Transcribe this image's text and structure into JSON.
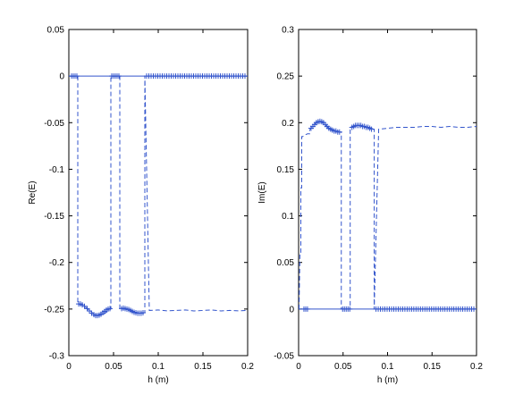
{
  "chart_data": [
    {
      "type": "line",
      "xlabel": "h (m)",
      "ylabel": "Re(E)",
      "xlim": [
        0,
        0.2
      ],
      "ylim": [
        -0.3,
        0.05
      ],
      "xticks": [
        0,
        0.05,
        0.1,
        0.15,
        0.2
      ],
      "xtick_labels": [
        "0",
        "0.05",
        "0.1",
        "0.15",
        "0.2"
      ],
      "yticks": [
        0.05,
        0,
        -0.05,
        -0.1,
        -0.15,
        -0.2,
        -0.25,
        -0.3
      ],
      "ytick_labels": [
        "0.05",
        "0",
        "-0.05",
        "-0.1",
        "-0.15",
        "-0.2",
        "-0.25",
        "-0.3"
      ],
      "grid": false,
      "color": "#3355cc",
      "series": [
        {
          "style": "solid",
          "x": [
            0,
            0.2
          ],
          "y": [
            0,
            0
          ]
        },
        {
          "style": "dashed",
          "x": [
            0.002,
            0.006,
            0.01,
            0.01,
            0.014,
            0.02,
            0.027,
            0.033,
            0.039,
            0.045,
            0.047,
            0.047,
            0.052,
            0.057,
            0.057,
            0.062,
            0.068,
            0.074,
            0.08,
            0.085,
            0.085,
            0.09,
            0.1,
            0.11,
            0.12,
            0.13,
            0.14,
            0.15,
            0.16,
            0.17,
            0.18,
            0.19,
            0.2
          ],
          "y": [
            0,
            0,
            0,
            -0.2445,
            -0.2455,
            -0.249,
            -0.2545,
            -0.257,
            -0.2555,
            -0.2515,
            -0.25,
            0,
            0,
            0,
            -0.25,
            -0.25,
            -0.251,
            -0.2535,
            -0.2545,
            -0.254,
            0,
            -0.2515,
            -0.251,
            -0.252,
            -0.2515,
            -0.251,
            -0.252,
            -0.2515,
            -0.251,
            -0.252,
            -0.2515,
            -0.252,
            -0.2515
          ]
        }
      ],
      "markers": {
        "symbol": "+",
        "on_zero": [
          0.003,
          0.005,
          0.007,
          0.009,
          0.048,
          0.05,
          0.052,
          0.054,
          0.056,
          0.087,
          0.0895,
          0.092,
          0.0945,
          0.097,
          0.0995,
          0.102,
          0.1045,
          0.107,
          0.1095,
          0.112,
          0.1145,
          0.117,
          0.1195,
          0.122,
          0.1245,
          0.127,
          0.1295,
          0.132,
          0.1345,
          0.137,
          0.1395,
          0.142,
          0.1445,
          0.147,
          0.1495,
          0.152,
          0.1545,
          0.157,
          0.1595,
          0.162,
          0.1645,
          0.167,
          0.1695,
          0.172,
          0.1745,
          0.177,
          0.1795,
          0.182,
          0.1845,
          0.187,
          0.1895,
          0.192,
          0.1945,
          0.197
        ],
        "on_curve_x": [
          0.011,
          0.013,
          0.015,
          0.0175,
          0.0205,
          0.023,
          0.0255,
          0.028,
          0.03,
          0.032,
          0.034,
          0.036,
          0.038,
          0.04,
          0.042,
          0.044,
          0.046,
          0.059,
          0.061,
          0.063,
          0.065,
          0.067,
          0.069,
          0.071,
          0.073,
          0.075,
          0.077,
          0.079,
          0.081,
          0.083
        ],
        "on_curve_y": [
          -0.2445,
          -0.2445,
          -0.2455,
          -0.247,
          -0.2495,
          -0.252,
          -0.2545,
          -0.256,
          -0.257,
          -0.257,
          -0.2565,
          -0.2555,
          -0.254,
          -0.2525,
          -0.251,
          -0.25,
          -0.2495,
          -0.2495,
          -0.249,
          -0.2495,
          -0.25,
          -0.2505,
          -0.2515,
          -0.2525,
          -0.2535,
          -0.254,
          -0.2545,
          -0.2545,
          -0.2545,
          -0.254
        ]
      }
    },
    {
      "type": "line",
      "xlabel": "h (m)",
      "ylabel": "Im(E)",
      "xlim": [
        0,
        0.2
      ],
      "ylim": [
        -0.05,
        0.3
      ],
      "xticks": [
        0,
        0.05,
        0.1,
        0.15,
        0.2
      ],
      "xtick_labels": [
        "0",
        "0.05",
        "0.1",
        "0.15",
        "0.2"
      ],
      "yticks": [
        0.3,
        0.25,
        0.2,
        0.15,
        0.1,
        0.05,
        0,
        -0.05
      ],
      "ytick_labels": [
        "0.3",
        "0.25",
        "0.2",
        "0.15",
        "0.1",
        "0.05",
        "0",
        "-0.05"
      ],
      "grid": false,
      "color": "#3355cc",
      "series": [
        {
          "style": "solid",
          "x": [
            0,
            0.2
          ],
          "y": [
            0,
            0
          ]
        },
        {
          "style": "dashed",
          "x": [
            0.0005,
            0.0015,
            0.0025,
            0.0025,
            0.0035,
            0.0035,
            0.0045,
            0.0075,
            0.01,
            0.0125,
            0.0125,
            0.015,
            0.02,
            0.025,
            0.03,
            0.035,
            0.04,
            0.045,
            0.048,
            0.048,
            0.053,
            0.058,
            0.058,
            0.062,
            0.068,
            0.074,
            0.08,
            0.085,
            0.085,
            0.09,
            0.1,
            0.11,
            0.12,
            0.13,
            0.14,
            0.15,
            0.16,
            0.17,
            0.18,
            0.19,
            0.2
          ],
          "y": [
            0,
            0.06,
            0.06,
            0.13,
            0.13,
            0.185,
            0.185,
            0.187,
            0.188,
            0.188,
            0.192,
            0.196,
            0.2,
            0.201,
            0.198,
            0.193,
            0.191,
            0.19,
            0.19,
            0,
            0,
            0,
            0.193,
            0.196,
            0.197,
            0.196,
            0.194,
            0.193,
            0,
            0.193,
            0.194,
            0.195,
            0.195,
            0.195,
            0.196,
            0.196,
            0.195,
            0.196,
            0.195,
            0.195,
            0.196
          ]
        }
      ],
      "markers": {
        "symbol": "+",
        "on_zero": [
          0.006,
          0.008,
          0.01,
          0.0495,
          0.0515,
          0.0535,
          0.0555,
          0.0575,
          0.087,
          0.0895,
          0.092,
          0.0945,
          0.097,
          0.0995,
          0.102,
          0.1045,
          0.107,
          0.1095,
          0.112,
          0.1145,
          0.117,
          0.1195,
          0.122,
          0.1245,
          0.127,
          0.1295,
          0.132,
          0.1345,
          0.137,
          0.1395,
          0.142,
          0.1445,
          0.147,
          0.1495,
          0.152,
          0.1545,
          0.157,
          0.1595,
          0.162,
          0.1645,
          0.167,
          0.1695,
          0.172,
          0.1745,
          0.177,
          0.1795,
          0.182,
          0.1845,
          0.187,
          0.1895,
          0.192,
          0.1945,
          0.197
        ],
        "on_curve_x": [
          0.014,
          0.016,
          0.018,
          0.02,
          0.022,
          0.024,
          0.026,
          0.028,
          0.03,
          0.032,
          0.034,
          0.036,
          0.038,
          0.04,
          0.042,
          0.044,
          0.046,
          0.06,
          0.062,
          0.064,
          0.066,
          0.068,
          0.07,
          0.072,
          0.074,
          0.076,
          0.078,
          0.08,
          0.082
        ],
        "on_curve_y": [
          0.194,
          0.196,
          0.198,
          0.2,
          0.201,
          0.2015,
          0.201,
          0.2,
          0.198,
          0.196,
          0.194,
          0.193,
          0.192,
          0.191,
          0.191,
          0.19,
          0.19,
          0.195,
          0.196,
          0.197,
          0.197,
          0.197,
          0.197,
          0.196,
          0.196,
          0.195,
          0.195,
          0.194,
          0.193
        ]
      }
    }
  ]
}
